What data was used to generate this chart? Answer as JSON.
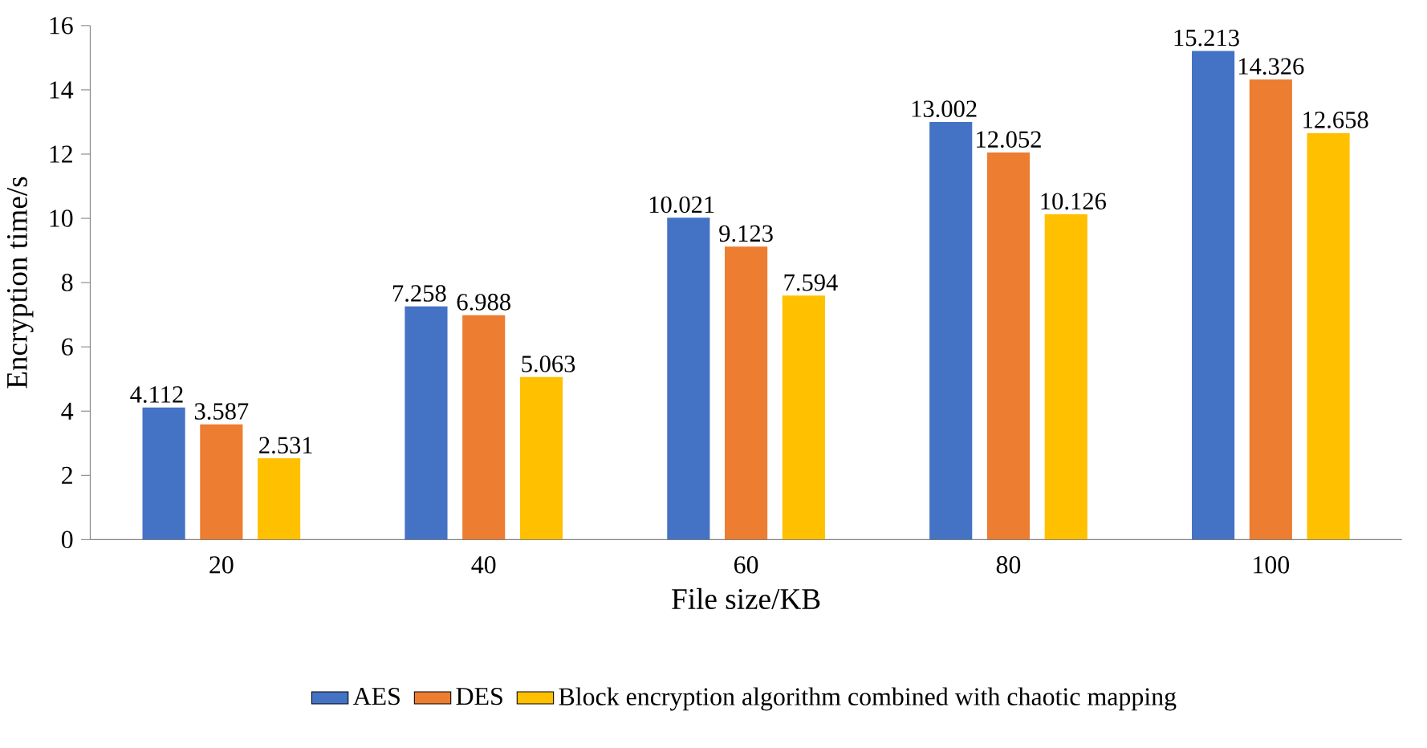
{
  "chart_data": {
    "type": "bar",
    "xlabel": "File size/KB",
    "ylabel": "Encryption time/s",
    "categories": [
      "20",
      "40",
      "60",
      "80",
      "100"
    ],
    "series": [
      {
        "name": "AES",
        "color": "#4472c4",
        "values": [
          4.112,
          7.258,
          10.021,
          13.002,
          15.213
        ]
      },
      {
        "name": "DES",
        "color": "#ed7d31",
        "values": [
          3.587,
          6.988,
          9.123,
          12.052,
          14.326
        ]
      },
      {
        "name": "Block encryption algorithm combined with chaotic mapping",
        "color": "#ffc000",
        "values": [
          2.531,
          5.063,
          7.594,
          10.126,
          12.658
        ]
      }
    ],
    "ylim": [
      0,
      16
    ],
    "yticks": [
      0,
      2,
      4,
      6,
      8,
      10,
      12,
      14,
      16
    ],
    "data_labels": true,
    "legend": "bottom",
    "grid": false
  }
}
